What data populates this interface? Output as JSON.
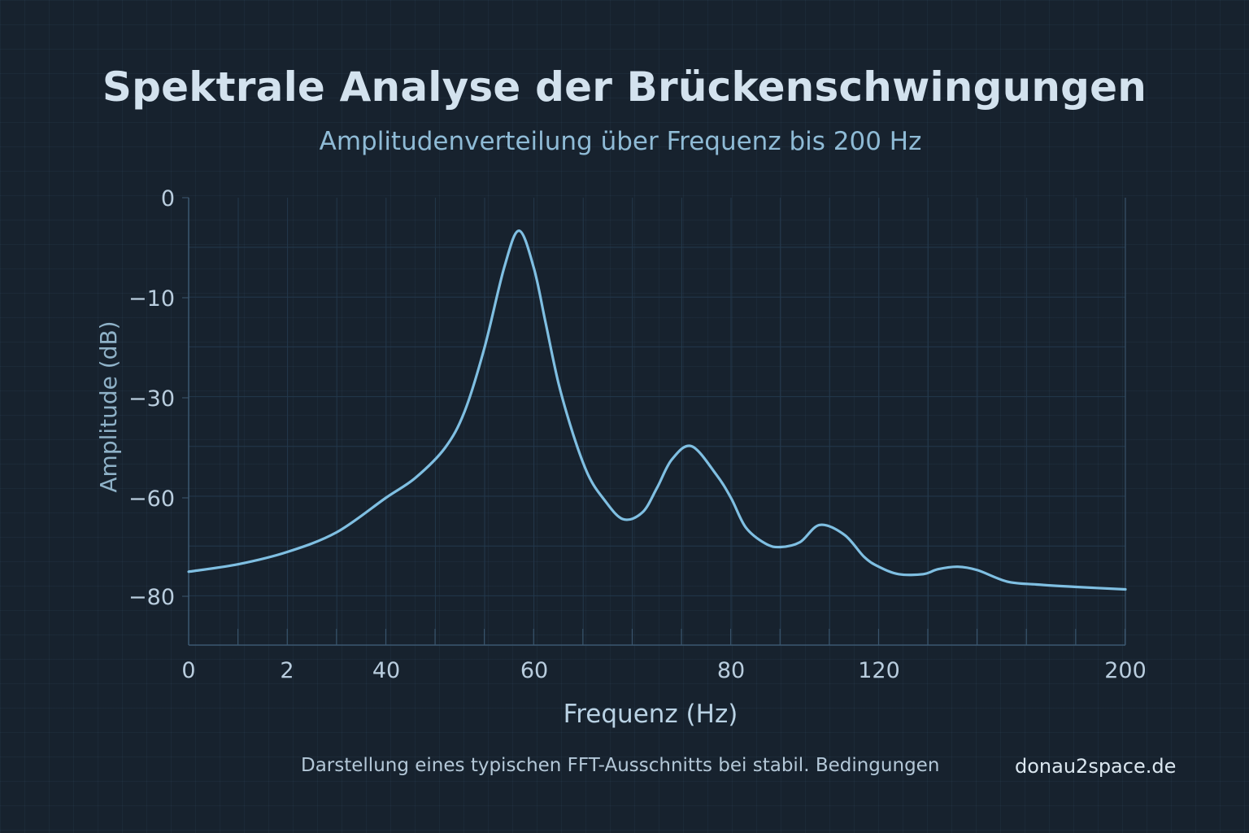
{
  "header": {
    "title": "Spektrale Analyse der Brückenschwingungen",
    "subtitle": "Amplitudenverteilung über Frequenz bis 200 Hz"
  },
  "footer": {
    "note": "Darstellung eines typischen FFT-Ausschnitts bei stabil. Bedingungen",
    "brand": "donau2space.de"
  },
  "chart_data": {
    "type": "line",
    "title": "Spektrale Analyse der Brückenschwingungen",
    "subtitle": "Amplitudenverteilung über Frequenz bis 200 Hz",
    "xlabel": "Frequenz (Hz)",
    "ylabel": "Amplitude (dB)",
    "x_ticks": [
      "0",
      "2",
      "40",
      "60",
      "80",
      "120",
      "200"
    ],
    "y_ticks": [
      "0",
      "−10",
      "−30",
      "−60",
      "−80"
    ],
    "grid": true,
    "colors": {
      "line": "#7fbfe2",
      "axis": "#3c5870",
      "grid": "#23384c",
      "text": "#b9cdde"
    },
    "series": [
      {
        "x_tick_units": [
          0,
          0.5,
          1.0,
          1.5,
          2.0,
          2.3,
          2.6,
          2.8,
          3.0,
          3.2,
          3.35,
          3.5,
          3.62,
          3.75,
          3.9,
          4.05,
          4.2,
          4.4,
          4.6,
          4.75,
          4.9,
          5.1,
          5.35,
          5.5,
          5.65,
          5.85,
          6.0,
          6.2,
          6.4,
          6.65,
          6.85,
          7.0,
          7.2,
          7.45,
          7.6,
          7.8,
          8.0,
          8.3,
          8.6,
          9.0,
          9.5
        ],
        "values": [
          -75,
          -73.5,
          -71,
          -67,
          -60,
          -54,
          -45,
          -34,
          -20,
          -7,
          -3.3,
          -7,
          -15,
          -27,
          -41,
          -53,
          -60,
          -64.3,
          -63,
          -57,
          -48.5,
          -44.5,
          -53,
          -60,
          -66,
          -69.3,
          -70,
          -69,
          -65.5,
          -67.5,
          -72,
          -74,
          -75.5,
          -75.5,
          -74.5,
          -74,
          -74.7,
          -77,
          -77.6,
          -78.1,
          -78.6
        ]
      }
    ]
  }
}
